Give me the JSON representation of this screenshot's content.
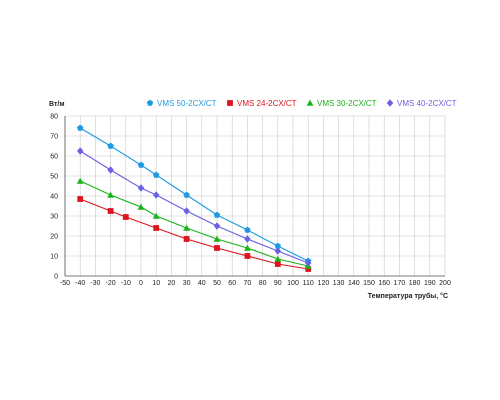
{
  "chart_data": {
    "type": "line",
    "ylabel": "Вт/м",
    "xlabel": "Температура трубы, °С",
    "xlim": [
      -50,
      200
    ],
    "ylim": [
      0,
      80
    ],
    "x_ticks": [
      -50,
      -40,
      -30,
      -20,
      -10,
      0,
      10,
      20,
      30,
      40,
      50,
      60,
      70,
      80,
      90,
      100,
      110,
      120,
      130,
      140,
      150,
      160,
      170,
      180,
      190,
      200
    ],
    "y_ticks": [
      0,
      10,
      20,
      30,
      40,
      50,
      60,
      70,
      80
    ],
    "grid": true,
    "legend_position": "top",
    "series": [
      {
        "name": "VMS 50-2CX/CT",
        "color": "#1e9be0",
        "marker": "pentagon",
        "x": [
          -40,
          -20,
          0,
          10,
          30,
          50,
          70,
          90,
          110
        ],
        "y": [
          74,
          65,
          55.5,
          50.5,
          40.5,
          30.5,
          23,
          15,
          7.5
        ]
      },
      {
        "name": "VMS 24-2CX/CT",
        "color": "#e0141e",
        "marker": "square",
        "x": [
          -40,
          -20,
          -10,
          10,
          30,
          50,
          70,
          90,
          110
        ],
        "y": [
          38.5,
          32.5,
          29.5,
          24,
          18.5,
          14,
          10,
          6,
          3.5
        ]
      },
      {
        "name": "VMS 30-2CX/CT",
        "color": "#19b419",
        "marker": "triangle",
        "x": [
          -40,
          -20,
          0,
          10,
          30,
          50,
          70,
          90,
          110
        ],
        "y": [
          47.5,
          40.5,
          34.5,
          30,
          24,
          18.5,
          14,
          8.5,
          5
        ]
      },
      {
        "name": "VMS 40-2CX/CT",
        "color": "#6a5fe6",
        "marker": "diamond",
        "x": [
          -40,
          -20,
          0,
          10,
          30,
          50,
          70,
          90,
          110
        ],
        "y": [
          62.5,
          53,
          44,
          40.5,
          32.5,
          25,
          18.5,
          12.5,
          6.5
        ]
      }
    ]
  }
}
